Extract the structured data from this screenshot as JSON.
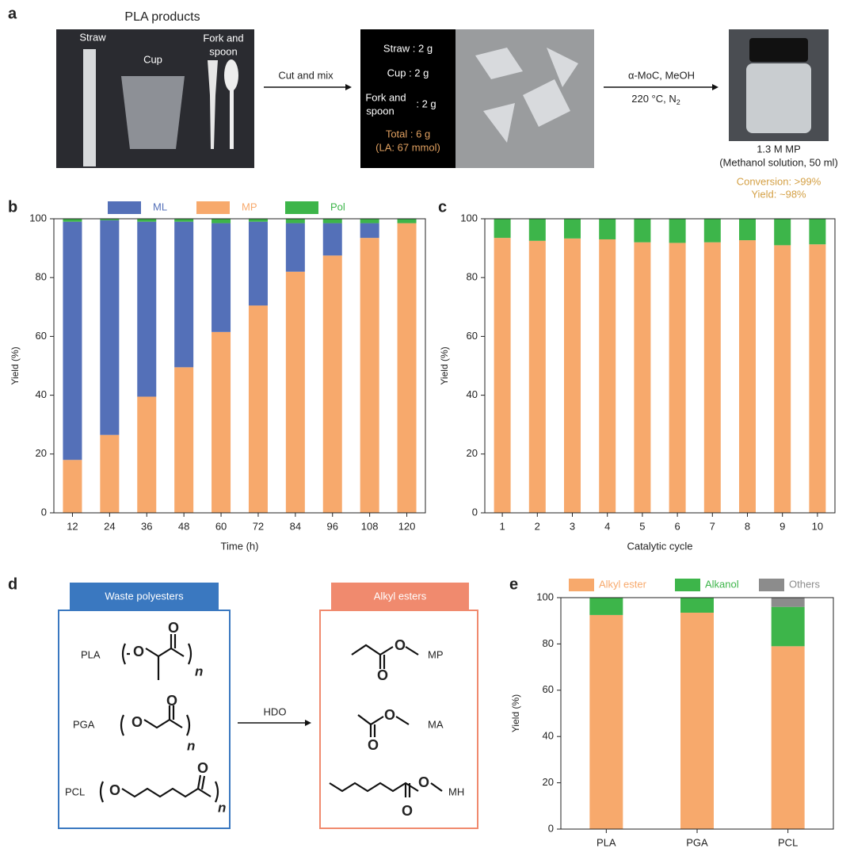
{
  "panel_a": {
    "panel": "a",
    "title": "PLA products",
    "items": [
      "Straw",
      "Cup"
    ],
    "fork_lines": [
      "Fork and",
      "spoon"
    ],
    "step1": "Cut and mix",
    "mix": [
      "Straw : 2 g",
      "Cup : 2 g"
    ],
    "mix_fork_lines": [
      "Fork and",
      "spoon"
    ],
    "mix_fork_amount": ": 2 g",
    "total": "Total : 6 g",
    "total_la": "(LA: 67 mmol)",
    "step2_top": "α-MoC, MeOH",
    "step2_bottom": "220 °C, N",
    "step2_sub": "2",
    "product": "1.3 M MP",
    "product_note": "(Methanol solution, 50 ml)",
    "conversion": "Conversion: >99%",
    "yield": "Yield: ~98%"
  },
  "panel_d": {
    "panel": "d",
    "left_header": "Waste polyesters",
    "right_header": "Alkyl esters",
    "polyesters": [
      "PLA",
      "PGA",
      "PCL"
    ],
    "esters": [
      "MP",
      "MA",
      "MH"
    ],
    "arrow": "HDO",
    "atom": "O",
    "repeat": "n"
  },
  "chart_data": [
    {
      "type": "bar",
      "stacked": true,
      "panel": "b",
      "x_label": "Time (h)",
      "y_label": "Yield (%)",
      "categories": [
        "12",
        "24",
        "36",
        "48",
        "60",
        "72",
        "84",
        "96",
        "108",
        "120"
      ],
      "series": [
        {
          "name": "MP",
          "color": "#f7a96c",
          "values": [
            18,
            26.5,
            39.5,
            49.5,
            61.5,
            70.5,
            82,
            87.5,
            93.5,
            98.5
          ]
        },
        {
          "name": "ML",
          "color": "#5470b8",
          "values": [
            81,
            73,
            59.5,
            49.5,
            37,
            28.5,
            16.5,
            11,
            5,
            0
          ]
        },
        {
          "name": "Pol",
          "color": "#3db54a",
          "values": [
            1,
            0.5,
            1,
            1,
            1.5,
            1,
            1.5,
            1.5,
            1.5,
            1.5
          ]
        }
      ],
      "legend_order": [
        1,
        0,
        2
      ],
      "ylim": [
        0,
        100
      ],
      "yticks": [
        0,
        20,
        40,
        60,
        80,
        100
      ]
    },
    {
      "type": "bar",
      "stacked": true,
      "panel": "c",
      "x_label": "Catalytic cycle",
      "y_label": "Yield (%)",
      "categories": [
        "1",
        "2",
        "3",
        "4",
        "5",
        "6",
        "7",
        "8",
        "9",
        "10"
      ],
      "series": [
        {
          "color": "#f7a96c",
          "values": [
            93.5,
            92.5,
            93.3,
            93,
            92,
            91.8,
            92,
            92.7,
            91,
            91.3
          ]
        },
        {
          "color": "#3db54a",
          "values": [
            6.5,
            7.5,
            6.7,
            7,
            8,
            8.2,
            8,
            7.3,
            9,
            8.7
          ]
        }
      ],
      "ylim": [
        0,
        100
      ],
      "yticks": [
        0,
        20,
        40,
        60,
        80,
        100
      ]
    },
    {
      "type": "bar",
      "stacked": true,
      "panel": "e",
      "y_label": "Yield (%)",
      "categories": [
        "PLA",
        "PGA",
        "PCL"
      ],
      "series": [
        {
          "name": "Alkyl ester",
          "color": "#f7a96c",
          "values": [
            92.5,
            93.5,
            79
          ]
        },
        {
          "name": "Alkanol",
          "color": "#3db54a",
          "values": [
            7.5,
            6.5,
            17
          ]
        },
        {
          "name": "Others",
          "color": "#8c8c8c",
          "values": [
            0,
            0,
            4
          ]
        }
      ],
      "legend_order": [
        0,
        1,
        2
      ],
      "ylim": [
        0,
        100
      ],
      "yticks": [
        0,
        20,
        40,
        60,
        80,
        100
      ]
    }
  ]
}
